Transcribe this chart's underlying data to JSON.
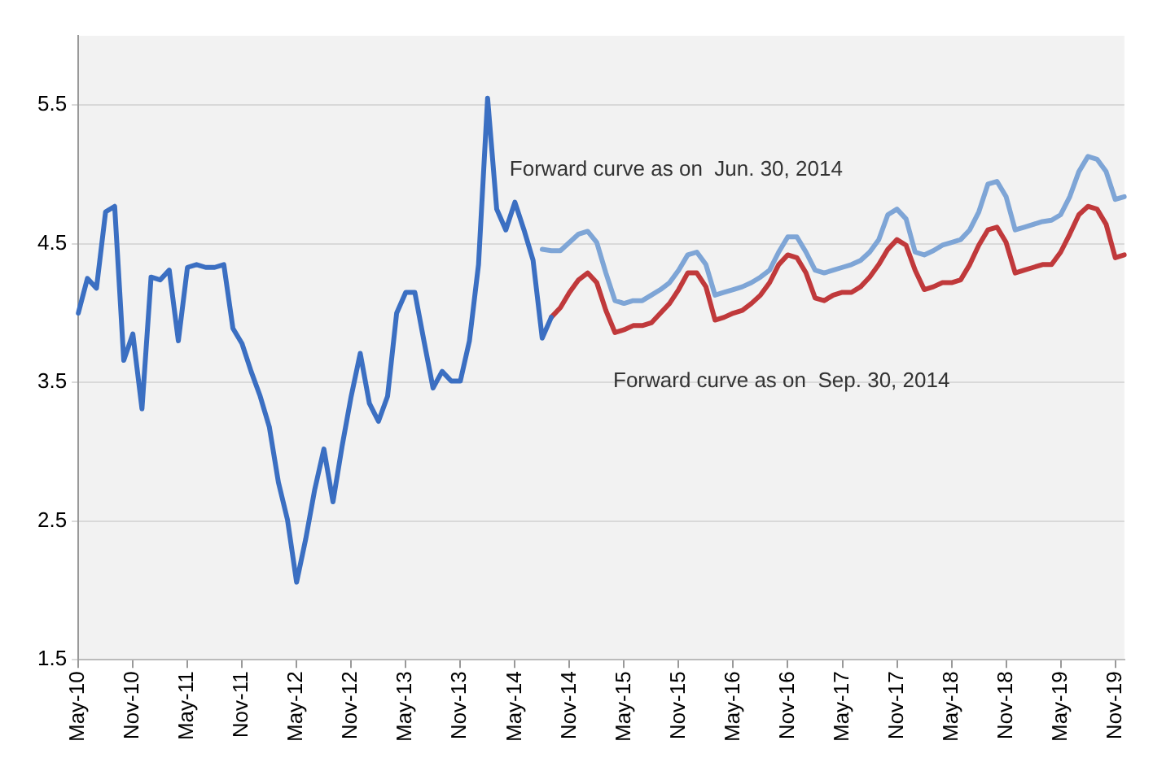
{
  "chart_data": {
    "type": "line",
    "categories": [
      "May-10",
      null,
      null,
      null,
      null,
      null,
      "Nov-10",
      null,
      null,
      null,
      null,
      null,
      "May-11",
      null,
      null,
      null,
      null,
      null,
      "Nov-11",
      null,
      null,
      null,
      null,
      null,
      "May-12",
      null,
      null,
      null,
      null,
      null,
      "Nov-12",
      null,
      null,
      null,
      null,
      null,
      "May-13",
      null,
      null,
      null,
      null,
      null,
      "Nov-13",
      null,
      null,
      null,
      null,
      null,
      "May-14",
      null,
      null,
      null,
      null,
      null,
      "Nov-14",
      null,
      null,
      null,
      null,
      null,
      "May-15",
      null,
      null,
      null,
      null,
      null,
      "Nov-15",
      null,
      null,
      null,
      null,
      null,
      "May-16",
      null,
      null,
      null,
      null,
      null,
      "Nov-16",
      null,
      null,
      null,
      null,
      null,
      "May-17",
      null,
      null,
      null,
      null,
      null,
      "Nov-17",
      null,
      null,
      null,
      null,
      null,
      "May-18",
      null,
      null,
      null,
      null,
      null,
      "Nov-18",
      null,
      null,
      null,
      null,
      null,
      "May-19",
      null,
      null,
      null,
      null,
      null,
      "Nov-19",
      null
    ],
    "series": [
      {
        "color": "#3b6fc2",
        "values": [
          4.0,
          4.25,
          4.18,
          4.73,
          4.77,
          3.66,
          3.85,
          3.31,
          4.26,
          4.24,
          4.31,
          3.8,
          4.33,
          4.35,
          4.33,
          4.33,
          4.35,
          3.89,
          3.78,
          3.58,
          3.4,
          3.18,
          2.78,
          2.51,
          2.06,
          2.37,
          2.73,
          3.02,
          2.64,
          3.04,
          3.4,
          3.71,
          3.35,
          3.22,
          3.4,
          4.0,
          4.15,
          4.15,
          3.8,
          3.46,
          3.58,
          3.51,
          3.51,
          3.8,
          4.35,
          5.55,
          4.75,
          4.6,
          4.8,
          4.6,
          4.38,
          3.82,
          3.97,
          null,
          null,
          null,
          null,
          null,
          null,
          null,
          null,
          null,
          null,
          null,
          null,
          null,
          null,
          null,
          null,
          null,
          null,
          null,
          null,
          null,
          null,
          null,
          null,
          null,
          null,
          null,
          null,
          null,
          null,
          null,
          null,
          null,
          null,
          null,
          null,
          null,
          null,
          null,
          null,
          null,
          null,
          null,
          null,
          null,
          null,
          null,
          null,
          null,
          null,
          null,
          null,
          null,
          null,
          null,
          null,
          null,
          null,
          null,
          null,
          null,
          null,
          null
        ]
      },
      {
        "name": "Forward curve as on  Jun. 30, 2014",
        "color": "#7ea5d6",
        "values": [
          null,
          null,
          null,
          null,
          null,
          null,
          null,
          null,
          null,
          null,
          null,
          null,
          null,
          null,
          null,
          null,
          null,
          null,
          null,
          null,
          null,
          null,
          null,
          null,
          null,
          null,
          null,
          null,
          null,
          null,
          null,
          null,
          null,
          null,
          null,
          null,
          null,
          null,
          null,
          null,
          null,
          null,
          null,
          null,
          null,
          null,
          null,
          null,
          null,
          null,
          null,
          4.46,
          4.45,
          4.45,
          4.51,
          4.57,
          4.59,
          4.51,
          4.29,
          4.09,
          4.07,
          4.09,
          4.09,
          4.13,
          4.17,
          4.22,
          4.31,
          4.42,
          4.44,
          4.35,
          4.13,
          4.15,
          4.17,
          4.19,
          4.22,
          4.26,
          4.31,
          4.44,
          4.55,
          4.55,
          4.44,
          4.31,
          4.29,
          4.31,
          4.33,
          4.35,
          4.38,
          4.44,
          4.53,
          4.71,
          4.75,
          4.68,
          4.44,
          4.42,
          4.45,
          4.49,
          4.51,
          4.53,
          4.6,
          4.73,
          4.93,
          4.95,
          4.84,
          4.6,
          4.62,
          4.64,
          4.66,
          4.67,
          4.71,
          4.84,
          5.02,
          5.13,
          5.11,
          5.02,
          4.82,
          4.84
        ]
      },
      {
        "name": "Forward curve as on  Sep. 30, 2014",
        "color": "#c0393b",
        "values": [
          null,
          null,
          null,
          null,
          null,
          null,
          null,
          null,
          null,
          null,
          null,
          null,
          null,
          null,
          null,
          null,
          null,
          null,
          null,
          null,
          null,
          null,
          null,
          null,
          null,
          null,
          null,
          null,
          null,
          null,
          null,
          null,
          null,
          null,
          null,
          null,
          null,
          null,
          null,
          null,
          null,
          null,
          null,
          null,
          null,
          null,
          null,
          null,
          null,
          null,
          null,
          null,
          3.97,
          4.04,
          4.15,
          4.24,
          4.29,
          4.22,
          4.02,
          3.86,
          3.88,
          3.91,
          3.91,
          3.93,
          4.0,
          4.07,
          4.17,
          4.29,
          4.29,
          4.19,
          3.95,
          3.97,
          4.0,
          4.02,
          4.07,
          4.13,
          4.22,
          4.35,
          4.42,
          4.4,
          4.29,
          4.11,
          4.09,
          4.13,
          4.15,
          4.15,
          4.19,
          4.26,
          4.35,
          4.46,
          4.53,
          4.49,
          4.31,
          4.17,
          4.19,
          4.22,
          4.22,
          4.24,
          4.35,
          4.49,
          4.6,
          4.62,
          4.51,
          4.29,
          4.31,
          4.33,
          4.35,
          4.35,
          4.44,
          4.57,
          4.71,
          4.77,
          4.75,
          4.64,
          4.4,
          4.42
        ]
      }
    ],
    "ylim": [
      1.5,
      6.0
    ],
    "yticks": [
      1.5,
      2.5,
      3.5,
      4.5,
      5.5
    ],
    "grid": "y",
    "legend": false,
    "marker": "none",
    "line_style": "solid"
  }
}
